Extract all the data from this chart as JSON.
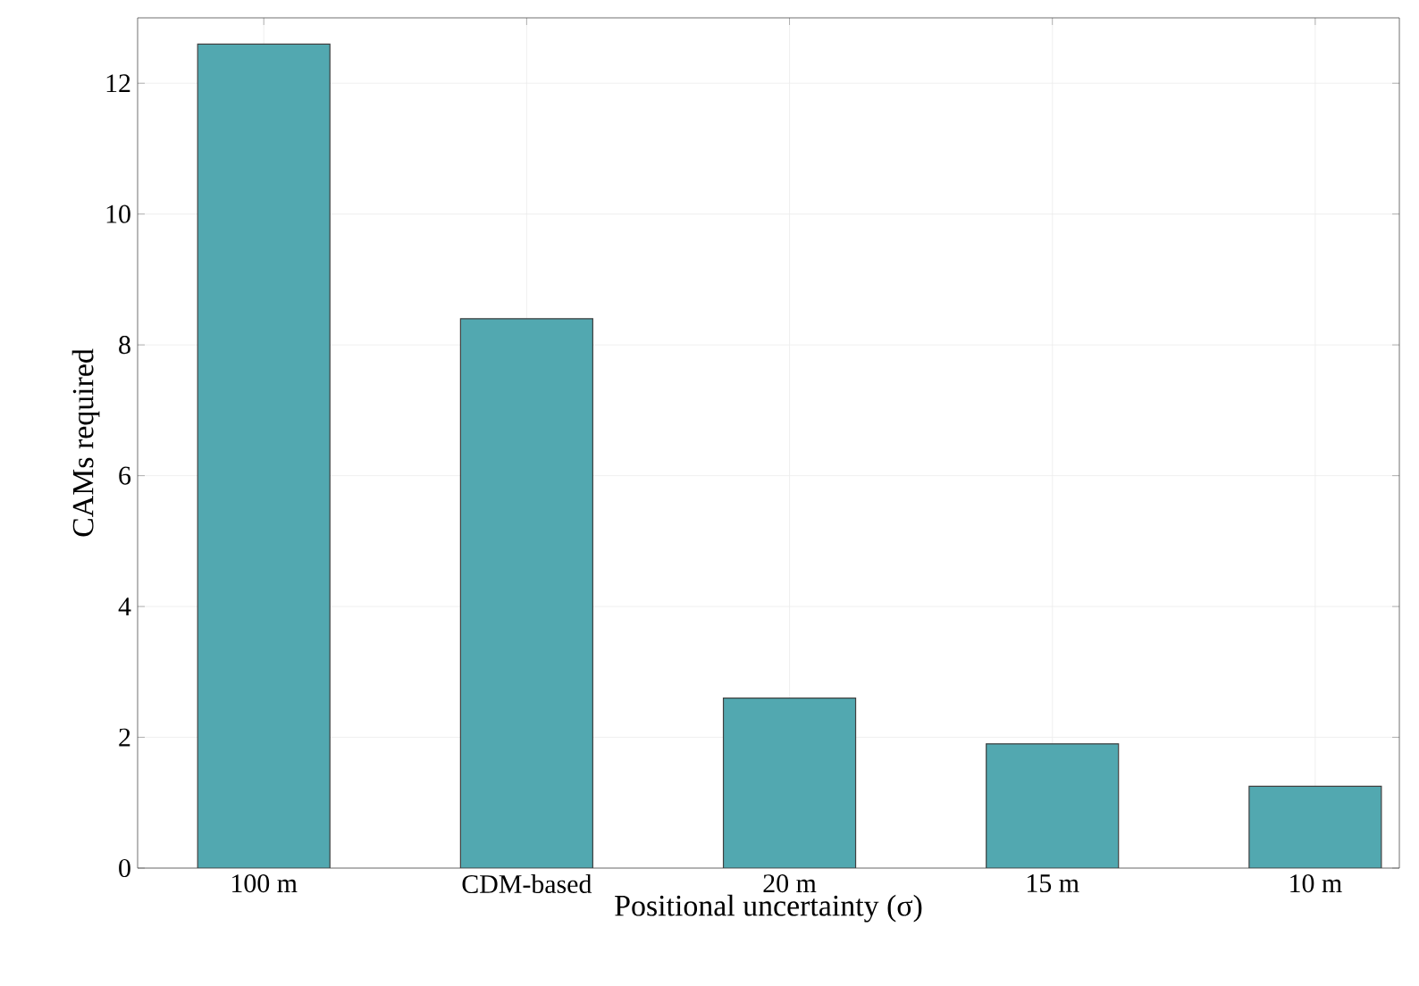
{
  "chart_data": {
    "type": "bar",
    "xlabel": "Positional uncertainty (σ)",
    "ylabel": "CAMs required",
    "categories": [
      "100 m",
      "CDM-based",
      "20 m",
      "15 m",
      "10 m"
    ],
    "values": [
      12.6,
      8.4,
      2.6,
      1.9,
      1.25
    ],
    "color": "#52a8b0",
    "ylim": [
      0,
      13
    ],
    "yticks": [
      0,
      2,
      4,
      6,
      8,
      10,
      12
    ],
    "grid": true
  }
}
